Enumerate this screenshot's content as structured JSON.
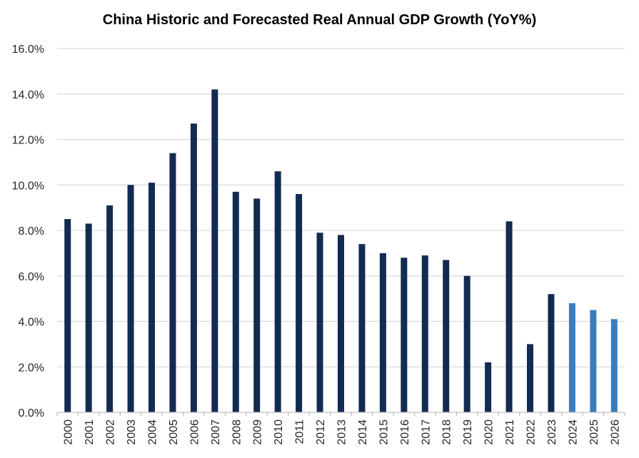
{
  "chart_data": {
    "type": "bar",
    "title": "China Historic and Forecasted Real Annual GDP  Growth (YoY%)",
    "xlabel": "",
    "ylabel": "",
    "ylim": [
      0,
      16
    ],
    "y_ticks": [
      "0.0%",
      "2.0%",
      "4.0%",
      "6.0%",
      "8.0%",
      "10.0%",
      "12.0%",
      "14.0%",
      "16.0%"
    ],
    "y_tick_values": [
      0,
      2,
      4,
      6,
      8,
      10,
      12,
      14,
      16
    ],
    "grid": true,
    "legend": "none",
    "categories": [
      "2000",
      "2001",
      "2002",
      "2003",
      "2004",
      "2005",
      "2006",
      "2007",
      "2008",
      "2009",
      "2010",
      "2011",
      "2012",
      "2013",
      "2014",
      "2015",
      "2016",
      "2017",
      "2018",
      "2019",
      "2020",
      "2021",
      "2022",
      "2023",
      "2024",
      "2025",
      "2026"
    ],
    "values": [
      8.5,
      8.3,
      9.1,
      10.0,
      10.1,
      11.4,
      12.7,
      14.2,
      9.7,
      9.4,
      10.6,
      9.6,
      7.9,
      7.8,
      7.4,
      7.0,
      6.8,
      6.9,
      6.7,
      6.0,
      2.2,
      8.4,
      3.0,
      5.2,
      4.8,
      4.5,
      4.1
    ],
    "kind": [
      "historic",
      "historic",
      "historic",
      "historic",
      "historic",
      "historic",
      "historic",
      "historic",
      "historic",
      "historic",
      "historic",
      "historic",
      "historic",
      "historic",
      "historic",
      "historic",
      "historic",
      "historic",
      "historic",
      "historic",
      "historic",
      "historic",
      "historic",
      "historic",
      "forecast",
      "forecast",
      "forecast"
    ],
    "colors": {
      "historic": "#132b50",
      "forecast": "#3a7dbd",
      "grid": "#d9d9d9",
      "axis": "#bfbfbf"
    }
  }
}
